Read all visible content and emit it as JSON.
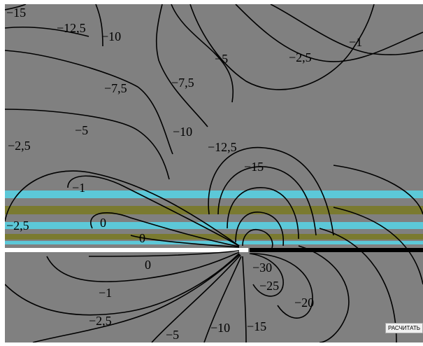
{
  "contour_labels": [
    {
      "text": "−15",
      "v": -15
    },
    {
      "text": "−12,5",
      "v": -12.5
    },
    {
      "text": "−10",
      "v": -10
    },
    {
      "text": "−1",
      "v": -1
    },
    {
      "text": "−5",
      "v": -5
    },
    {
      "text": "−2,5",
      "v": -2.5
    },
    {
      "text": "−7,5",
      "v": -7.5
    },
    {
      "text": "−7,5",
      "v": -7.5
    },
    {
      "text": "−5",
      "v": -5
    },
    {
      "text": "−10",
      "v": -10
    },
    {
      "text": "−2,5",
      "v": -2.5
    },
    {
      "text": "−12,5",
      "v": -12.5
    },
    {
      "text": "−15",
      "v": -15
    },
    {
      "text": "−1",
      "v": -1
    },
    {
      "text": "−2,5",
      "v": -2.5
    },
    {
      "text": "0",
      "v": 0
    },
    {
      "text": "0",
      "v": 0
    },
    {
      "text": "0",
      "v": 0
    },
    {
      "text": "−30",
      "v": -30
    },
    {
      "text": "−25",
      "v": -25
    },
    {
      "text": "−20",
      "v": -20
    },
    {
      "text": "−1",
      "v": -1
    },
    {
      "text": "−2,5",
      "v": -2.5
    },
    {
      "text": "−5",
      "v": -5
    },
    {
      "text": "−10",
      "v": -10
    },
    {
      "text": "−15",
      "v": -15
    }
  ],
  "colors": {
    "background": "#808080",
    "cyan_band": "#5cc8d8",
    "olive_band": "#7a7a30",
    "white_plate": "#ffffff",
    "black_plate": "#000000",
    "contour": "#000000"
  },
  "button": {
    "label": "РАСЧИТАТЬ"
  }
}
